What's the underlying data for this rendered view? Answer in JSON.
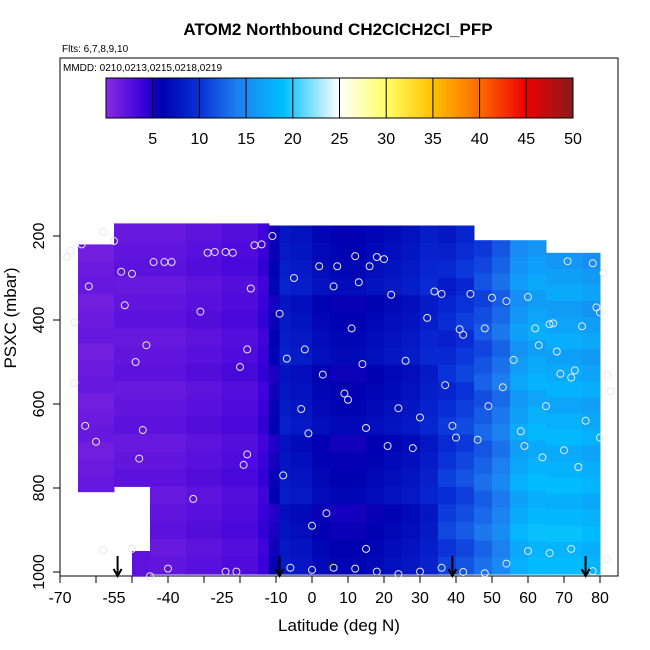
{
  "chart_data": {
    "type": "heatmap",
    "title": "ATOM2 Northbound CH2ClCH2Cl_PFP",
    "flights_note": "Flts: 6,7,8,9,10",
    "dates_note": "MMDD: 0210,0213,0215,0218,0219",
    "xlabel": "Latitude (deg N)",
    "ylabel": "PSXC (mbar)",
    "xlim": [
      -70,
      85
    ],
    "ylim": [
      1010,
      120
    ],
    "x_ticks": [
      -70,
      -60,
      -50,
      -40,
      -30,
      -20,
      -10,
      0,
      10,
      20,
      30,
      40,
      50,
      60,
      70,
      80
    ],
    "x_tick_labels": [
      "-70",
      "-55",
      "-40",
      "-25",
      "-10",
      "0",
      "10",
      "20",
      "30",
      "40",
      "50",
      "60",
      "70",
      "80"
    ],
    "x_tick_label_values": [
      -70,
      -55,
      -40,
      -25,
      -10,
      0,
      10,
      20,
      30,
      40,
      50,
      60,
      70,
      80
    ],
    "y_tick_labels": [
      "200",
      "400",
      "600",
      "800",
      "1000"
    ],
    "y_tick_values": [
      200,
      400,
      600,
      800,
      1000
    ],
    "colorbar": {
      "range": [
        0,
        50
      ],
      "tick_labels": [
        "5",
        "10",
        "15",
        "20",
        "25",
        "30",
        "35",
        "40",
        "45",
        "50"
      ],
      "tick_values": [
        5,
        10,
        15,
        20,
        25,
        30,
        35,
        40,
        45,
        50
      ],
      "stops": [
        {
          "v": 0,
          "c": "#8a2be2"
        },
        {
          "v": 4,
          "c": "#3a00d8"
        },
        {
          "v": 6,
          "c": "#0000b0"
        },
        {
          "v": 10,
          "c": "#0a30d8"
        },
        {
          "v": 14,
          "c": "#1e7df0"
        },
        {
          "v": 19,
          "c": "#00bfff"
        },
        {
          "v": 25,
          "c": "#ffffff"
        },
        {
          "v": 30,
          "c": "#ffff66"
        },
        {
          "v": 35,
          "c": "#ffc000"
        },
        {
          "v": 40,
          "c": "#ff6a00"
        },
        {
          "v": 45,
          "c": "#ee0000"
        },
        {
          "v": 50,
          "c": "#8b1a1a"
        }
      ]
    },
    "field": {
      "lat_breaks": [
        -65,
        -55,
        -45,
        -35,
        -25,
        -15,
        -12,
        -9,
        -6,
        -3,
        0,
        5,
        10,
        15,
        20,
        25,
        30,
        35,
        40,
        45,
        50,
        55,
        60,
        65,
        70,
        75,
        80
      ],
      "lat_values": [
        1.5,
        2.0,
        2.0,
        2.5,
        3.0,
        4.0,
        6.0,
        8.5,
        8.0,
        8.0,
        7.0,
        6.5,
        6.5,
        7.0,
        7.5,
        8.0,
        9.0,
        10.0,
        11.0,
        12.5,
        14.0,
        17.0,
        18.0,
        18.0,
        18.0,
        17.5
      ],
      "pressure_min": 170,
      "pressure_max": 1005
    },
    "sample_points": [
      [
        -68,
        250
      ],
      [
        -67,
        235
      ],
      [
        -66,
        405
      ],
      [
        -66,
        550
      ],
      [
        -64,
        220
      ],
      [
        -63,
        652
      ],
      [
        -62,
        320
      ],
      [
        -60,
        690
      ],
      [
        -58,
        190
      ],
      [
        -55,
        212
      ],
      [
        -53,
        285
      ],
      [
        -52,
        365
      ],
      [
        -50,
        290
      ],
      [
        -49,
        500
      ],
      [
        -48,
        730
      ],
      [
        -47,
        662
      ],
      [
        -46,
        460
      ],
      [
        -44,
        262
      ],
      [
        -41,
        262
      ],
      [
        -39,
        262
      ],
      [
        -33,
        826
      ],
      [
        -31,
        380
      ],
      [
        -29,
        240
      ],
      [
        -27,
        238
      ],
      [
        -24,
        238
      ],
      [
        -22,
        240
      ],
      [
        -20,
        512
      ],
      [
        -19,
        745
      ],
      [
        -18,
        470
      ],
      [
        -18,
        720
      ],
      [
        -17,
        325
      ],
      [
        -16,
        222
      ],
      [
        -14,
        220
      ],
      [
        -11,
        200
      ],
      [
        -9,
        385
      ],
      [
        -8,
        770
      ],
      [
        -7,
        492
      ],
      [
        -5,
        300
      ],
      [
        -3,
        612
      ],
      [
        -2,
        470
      ],
      [
        -1,
        670
      ],
      [
        0,
        890
      ],
      [
        2,
        272
      ],
      [
        3,
        530
      ],
      [
        4,
        860
      ],
      [
        6,
        320
      ],
      [
        7,
        272
      ],
      [
        9,
        575
      ],
      [
        10,
        590
      ],
      [
        11,
        420
      ],
      [
        12,
        248
      ],
      [
        13,
        310
      ],
      [
        14,
        505
      ],
      [
        15,
        657
      ],
      [
        16,
        272
      ],
      [
        18,
        250
      ],
      [
        20,
        255
      ],
      [
        21,
        700
      ],
      [
        22,
        340
      ],
      [
        24,
        610
      ],
      [
        26,
        497
      ],
      [
        28,
        705
      ],
      [
        30,
        632
      ],
      [
        32,
        395
      ],
      [
        34,
        332
      ],
      [
        36,
        338
      ],
      [
        37,
        555
      ],
      [
        39,
        652
      ],
      [
        40,
        680
      ],
      [
        41,
        422
      ],
      [
        42,
        435
      ],
      [
        44,
        338
      ],
      [
        46,
        685
      ],
      [
        48,
        420
      ],
      [
        49,
        605
      ],
      [
        50,
        347
      ],
      [
        53,
        560
      ],
      [
        54,
        355
      ],
      [
        56,
        495
      ],
      [
        58,
        665
      ],
      [
        59,
        700
      ],
      [
        60,
        345
      ],
      [
        62,
        420
      ],
      [
        63,
        460
      ],
      [
        64,
        727
      ],
      [
        65,
        605
      ],
      [
        66,
        410
      ],
      [
        67,
        408
      ],
      [
        68,
        475
      ],
      [
        69,
        528
      ],
      [
        70,
        710
      ],
      [
        71,
        260
      ],
      [
        72,
        537
      ],
      [
        73,
        520
      ],
      [
        74,
        750
      ],
      [
        75,
        415
      ],
      [
        76,
        640
      ],
      [
        78,
        265
      ],
      [
        79,
        370
      ],
      [
        80,
        382
      ],
      [
        80,
        680
      ],
      [
        81,
        288
      ],
      [
        82,
        530
      ],
      [
        83,
        570
      ],
      [
        -58,
        948
      ],
      [
        -50,
        945
      ],
      [
        -45,
        1010
      ],
      [
        -24,
        999
      ],
      [
        -21,
        999
      ],
      [
        -6,
        990
      ],
      [
        0,
        995
      ],
      [
        6,
        990
      ],
      [
        12,
        992
      ],
      [
        18,
        999
      ],
      [
        24,
        1005
      ],
      [
        30,
        999
      ],
      [
        36,
        990
      ],
      [
        42,
        1000
      ],
      [
        48,
        1003
      ],
      [
        54,
        980
      ],
      [
        60,
        950
      ],
      [
        66,
        955
      ],
      [
        72,
        945
      ],
      [
        78,
        998
      ],
      [
        82,
        970
      ],
      [
        -40,
        992
      ],
      [
        15,
        945
      ]
    ],
    "arrows_lat": [
      -54,
      -9,
      39,
      76
    ]
  }
}
